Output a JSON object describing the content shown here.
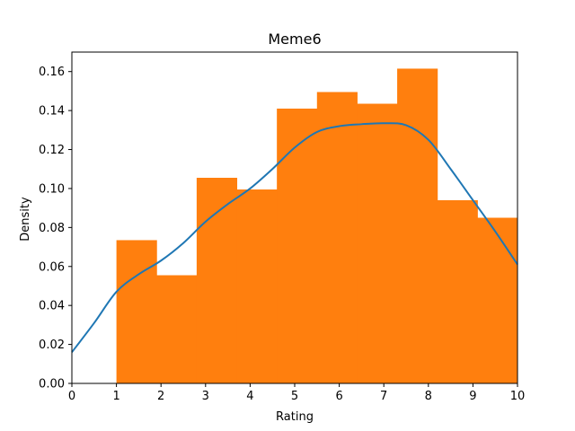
{
  "chart_data": {
    "type": "bar",
    "title": "Meme6",
    "xlabel": "Rating",
    "ylabel": "Density",
    "xlim": [
      0,
      10
    ],
    "ylim": [
      0,
      0.17
    ],
    "grid": false,
    "legend": "none",
    "x_ticks": [
      "0",
      "1",
      "2",
      "3",
      "4",
      "5",
      "6",
      "7",
      "8",
      "9",
      "10"
    ],
    "y_ticks": [
      "0.00",
      "0.02",
      "0.04",
      "0.06",
      "0.08",
      "0.10",
      "0.12",
      "0.14",
      "0.16"
    ],
    "series": [
      {
        "kind": "histogram",
        "color": "#ff7f0e",
        "bin_edges": [
          1,
          1.9,
          2.8,
          3.7,
          4.6,
          5.5,
          6.4,
          7.3,
          8.2,
          9.1,
          10
        ],
        "values": [
          0.0735,
          0.0555,
          0.1055,
          0.0995,
          0.141,
          0.1495,
          0.1435,
          0.1615,
          0.094,
          0.085
        ]
      },
      {
        "kind": "kde-line",
        "color": "#1f77b4",
        "x": [
          0,
          0.5,
          1,
          1.5,
          2,
          2.5,
          3,
          3.5,
          4,
          4.5,
          5,
          5.5,
          6,
          6.5,
          7,
          7.5,
          8,
          8.5,
          9,
          9.5,
          10
        ],
        "y": [
          0.016,
          0.031,
          0.047,
          0.056,
          0.063,
          0.072,
          0.083,
          0.092,
          0.1,
          0.11,
          0.121,
          0.129,
          0.132,
          0.133,
          0.1335,
          0.1325,
          0.125,
          0.11,
          0.094,
          0.078,
          0.061
        ]
      }
    ]
  }
}
